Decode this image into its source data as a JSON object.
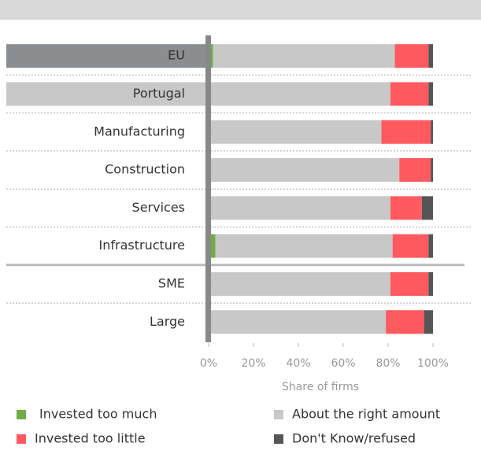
{
  "chart_data": {
    "type": "stacked-bar-horizontal",
    "categories": [
      "EU",
      "Portugal",
      "Manufacturing",
      "Construction",
      "Services",
      "Infrastructure",
      "SME",
      "Large"
    ],
    "series": [
      {
        "name": "Invested too much",
        "color": "#70ad47",
        "values": [
          2,
          0,
          0,
          0,
          0,
          3,
          1,
          0
        ]
      },
      {
        "name": "About the right amount",
        "color": "#c8c8c8",
        "values": [
          81,
          81,
          77,
          85,
          81,
          79,
          80,
          79
        ]
      },
      {
        "name": "Invested too little",
        "color": "#ff5a5f",
        "values": [
          15,
          17,
          22,
          14,
          14,
          16,
          17,
          17
        ]
      },
      {
        "name": "Don't Know/refused",
        "color": "#555555",
        "values": [
          2,
          2,
          1,
          1,
          5,
          2,
          2,
          4
        ]
      }
    ],
    "category_backgrounds": [
      "#8a8e91",
      "#c8c8c8",
      null,
      null,
      null,
      null,
      null,
      null
    ],
    "group_breaks": [
      6
    ],
    "xlabel": "Share of firms",
    "xlim": [
      0,
      100
    ],
    "xticks": [
      {
        "value": 0,
        "label": "0%"
      },
      {
        "value": 20,
        "label": "20%"
      },
      {
        "value": 40,
        "label": "40%"
      },
      {
        "value": 60,
        "label": "60%"
      },
      {
        "value": 80,
        "label": "80%"
      },
      {
        "value": 100,
        "label": "100%"
      }
    ]
  }
}
